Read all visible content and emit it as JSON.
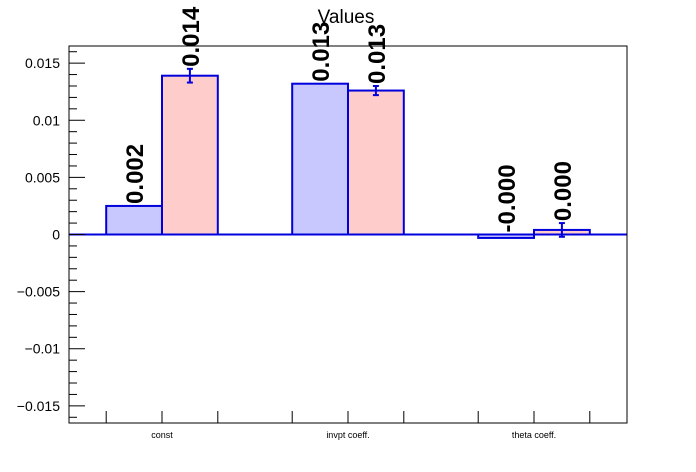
{
  "chart_data": {
    "type": "bar",
    "title": "Values",
    "xlabel": "",
    "ylabel": "",
    "categories": [
      "const",
      "invpt coeff.",
      "theta coeff."
    ],
    "series": [
      {
        "color": "#c8c8ff",
        "edge_color": "#0000dd",
        "values": [
          0.0025,
          0.0132,
          -0.0003
        ],
        "errors": [
          0,
          0,
          0
        ],
        "labels": [
          "0.002",
          "0.013",
          "-0.000"
        ]
      },
      {
        "color": "#ffcccc",
        "edge_color": "#0000dd",
        "values": [
          0.0139,
          0.0126,
          0.0004
        ],
        "errors": [
          0.0006,
          0.0004,
          0.0006
        ],
        "labels": [
          "0.014",
          "0.013",
          "0.000"
        ]
      }
    ],
    "ylim": [
      -0.0165,
      0.0165
    ],
    "yticks": [
      -0.015,
      -0.01,
      -0.005,
      0,
      0.005,
      0.01,
      0.015
    ],
    "ytick_labels": [
      "−0.015",
      "−0.01",
      "−0.005",
      "0",
      "0.005",
      "0.01",
      "0.015"
    ],
    "grid": false,
    "legend": "none"
  }
}
